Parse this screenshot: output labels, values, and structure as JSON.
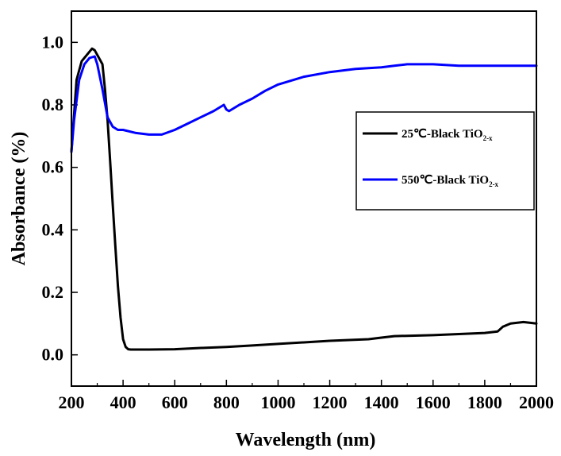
{
  "chart_data": {
    "type": "line",
    "title": "",
    "xlabel": "Wavelength (nm)",
    "ylabel": "Absorbance (%)",
    "xlim": [
      200,
      2000
    ],
    "ylim": [
      -0.1,
      1.1
    ],
    "x_ticks": [
      200,
      400,
      600,
      800,
      1000,
      1200,
      1400,
      1600,
      1800,
      2000
    ],
    "y_ticks": [
      0.0,
      0.2,
      0.4,
      0.6,
      0.8,
      1.0
    ],
    "x_tick_labels": [
      "200",
      "400",
      "600",
      "800",
      "1000",
      "1200",
      "1400",
      "1600",
      "1800",
      "2000"
    ],
    "y_tick_labels": [
      "0.0",
      "0.2",
      "0.4",
      "0.6",
      "0.8",
      "1.0"
    ],
    "grid": false,
    "legend_position": "right",
    "series": [
      {
        "name": "25℃-Black TiO",
        "name_subscript": "2-x",
        "color": "#000000",
        "x": [
          200,
          220,
          240,
          260,
          280,
          290,
          300,
          320,
          330,
          340,
          350,
          360,
          370,
          380,
          390,
          400,
          410,
          420,
          430,
          450,
          500,
          600,
          700,
          800,
          900,
          1000,
          1200,
          1350,
          1400,
          1450,
          1600,
          1800,
          1850,
          1870,
          1900,
          1950,
          2000
        ],
        "y": [
          0.65,
          0.88,
          0.94,
          0.96,
          0.98,
          0.975,
          0.96,
          0.93,
          0.85,
          0.75,
          0.62,
          0.48,
          0.35,
          0.22,
          0.12,
          0.05,
          0.025,
          0.018,
          0.017,
          0.017,
          0.017,
          0.018,
          0.022,
          0.025,
          0.03,
          0.035,
          0.045,
          0.05,
          0.055,
          0.06,
          0.063,
          0.07,
          0.075,
          0.09,
          0.1,
          0.105,
          0.1
        ]
      },
      {
        "name": "550℃-Black TiO",
        "name_subscript": "2-x",
        "color": "#0000ff",
        "x": [
          200,
          210,
          230,
          250,
          270,
          290,
          300,
          320,
          340,
          360,
          380,
          400,
          450,
          500,
          550,
          600,
          650,
          700,
          750,
          790,
          800,
          810,
          850,
          900,
          950,
          1000,
          1100,
          1200,
          1300,
          1400,
          1450,
          1500,
          1600,
          1700,
          1800,
          1900,
          2000
        ],
        "y": [
          0.65,
          0.75,
          0.88,
          0.93,
          0.95,
          0.955,
          0.93,
          0.85,
          0.76,
          0.73,
          0.72,
          0.72,
          0.71,
          0.705,
          0.705,
          0.72,
          0.74,
          0.76,
          0.78,
          0.8,
          0.785,
          0.78,
          0.8,
          0.82,
          0.845,
          0.865,
          0.89,
          0.905,
          0.915,
          0.92,
          0.925,
          0.93,
          0.93,
          0.925,
          0.925,
          0.925,
          0.925
        ]
      }
    ]
  }
}
